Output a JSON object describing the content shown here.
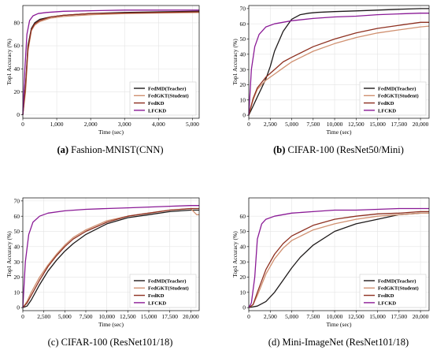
{
  "figure": {
    "colors": {
      "teacher": "#1e1a1a",
      "student": "#d09070",
      "fedkd": "#8e3020",
      "lfckd": "#8a1a96"
    }
  },
  "chart_data": [
    {
      "type": "line",
      "panel_label": "(a)",
      "caption": "Fashion-MNIST(CNN)",
      "xlabel": "Time (sec)",
      "ylabel": "Top1 Accuracy (%)",
      "xlim": [
        0,
        5200
      ],
      "ylim": [
        -3,
        95
      ],
      "xticks": [
        0,
        1000,
        2000,
        3000,
        4000,
        5000
      ],
      "xtick_labels": [
        "0",
        "1,000",
        "2,000",
        "3,000",
        "4,000",
        "5,000"
      ],
      "yticks": [
        0,
        20,
        40,
        60,
        80
      ],
      "ytick_labels": [
        "0",
        "20",
        "40",
        "60",
        "80"
      ],
      "grid": true,
      "legend_position": "bottom-right",
      "series": [
        {
          "name": "FedMD(Teacher)",
          "color_key": "teacher",
          "x": [
            0,
            80,
            150,
            250,
            350,
            500,
            800,
            1200,
            2000,
            3000,
            4000,
            5200
          ],
          "y": [
            0,
            25,
            60,
            75,
            80,
            83,
            85,
            86.5,
            88,
            89,
            89.5,
            90
          ]
        },
        {
          "name": "FedGKT(Student)",
          "color_key": "student",
          "x": [
            0,
            80,
            150,
            250,
            350,
            500,
            800,
            1200,
            2000,
            3000,
            4000,
            5200
          ],
          "y": [
            0,
            20,
            55,
            73,
            78,
            81,
            84,
            85.5,
            87,
            88,
            88.5,
            89
          ]
        },
        {
          "name": "FedKD",
          "color_key": "fedkd",
          "x": [
            0,
            80,
            150,
            250,
            350,
            500,
            800,
            1200,
            2000,
            3000,
            4000,
            5200
          ],
          "y": [
            0,
            24,
            58,
            74,
            79,
            82,
            85,
            86.5,
            88,
            88.5,
            89,
            89.5
          ]
        },
        {
          "name": "LFCKD",
          "color_key": "lfckd",
          "x": [
            0,
            60,
            120,
            200,
            300,
            450,
            700,
            1200,
            2000,
            3000,
            4000,
            5200
          ],
          "y": [
            0,
            40,
            70,
            82,
            86,
            88,
            89,
            90,
            90.5,
            91,
            91,
            91
          ]
        }
      ]
    },
    {
      "type": "line",
      "panel_label": "(b)",
      "caption": "CIFAR-100 (ResNet50/Mini)",
      "xlabel": "Time (sec)",
      "ylabel": "Top1 Accuracy (%)",
      "xlim": [
        0,
        21000
      ],
      "ylim": [
        -2,
        72
      ],
      "xticks": [
        0,
        2500,
        5000,
        7500,
        10000,
        12500,
        15000,
        17500,
        20000
      ],
      "xtick_labels": [
        "0",
        "2,500",
        "5,000",
        "7,500",
        "10,000",
        "12,500",
        "15,000",
        "17,500",
        "20,000"
      ],
      "yticks": [
        0,
        10,
        20,
        30,
        40,
        50,
        60,
        70
      ],
      "ytick_labels": [
        "0",
        "10",
        "20",
        "30",
        "40",
        "50",
        "60",
        "70"
      ],
      "grid": true,
      "legend_position": "bottom-right",
      "series": [
        {
          "name": "FedMD(Teacher)",
          "color_key": "teacher",
          "x": [
            0,
            500,
            1000,
            1500,
            2000,
            2500,
            3000,
            4000,
            5000,
            6000,
            7000,
            8000,
            10000,
            12500,
            15000,
            17500,
            20000,
            21000
          ],
          "y": [
            0,
            6,
            12,
            18,
            24,
            32,
            42,
            55,
            63,
            66,
            67,
            67.5,
            68,
            68.5,
            69,
            69.5,
            70,
            70
          ]
        },
        {
          "name": "FedGKT(Student)",
          "color_key": "student",
          "x": [
            0,
            500,
            1000,
            2000,
            3000,
            4000,
            5000,
            7500,
            10000,
            12500,
            15000,
            17500,
            20000,
            21000
          ],
          "y": [
            0,
            10,
            17,
            23,
            27,
            31,
            35,
            42,
            47,
            51,
            54,
            56,
            58,
            58.5
          ]
        },
        {
          "name": "FedKD",
          "color_key": "fedkd",
          "x": [
            0,
            500,
            1000,
            2000,
            3000,
            4000,
            5000,
            7500,
            10000,
            12500,
            15000,
            17500,
            20000,
            21000
          ],
          "y": [
            0,
            11,
            18,
            25,
            30,
            35,
            38,
            45,
            50,
            54,
            57,
            59,
            61,
            61
          ]
        },
        {
          "name": "LFCKD",
          "color_key": "lfckd",
          "x": [
            0,
            300,
            700,
            1200,
            2000,
            3000,
            5000,
            7500,
            10000,
            12500,
            15000,
            17500,
            20000,
            21000
          ],
          "y": [
            0,
            30,
            45,
            53,
            58,
            60,
            62,
            63.5,
            64.5,
            65,
            66,
            66.5,
            67,
            67
          ]
        }
      ]
    },
    {
      "type": "line",
      "panel_label": "(c)",
      "caption": "CIFAR-100 (ResNet101/18)",
      "xlabel": "Time (sec)",
      "ylabel": "Top1 Accuracy (%)",
      "xlim": [
        0,
        21000
      ],
      "ylim": [
        -2,
        72
      ],
      "xticks": [
        0,
        2500,
        5000,
        7500,
        10000,
        12500,
        15000,
        17500,
        20000
      ],
      "xtick_labels": [
        "0",
        "2,500",
        "5,000",
        "7,500",
        "10,000",
        "12,500",
        "15,000",
        "17,500",
        "20,000"
      ],
      "yticks": [
        0,
        10,
        20,
        30,
        40,
        50,
        60,
        70
      ],
      "ytick_labels": [
        "0",
        "10",
        "20",
        "30",
        "40",
        "50",
        "60",
        "70"
      ],
      "grid": true,
      "legend_position": "bottom-right",
      "series": [
        {
          "name": "FedMD(Teacher)",
          "color_key": "teacher",
          "x": [
            0,
            500,
            1000,
            2000,
            3000,
            4000,
            5000,
            6000,
            7500,
            10000,
            12500,
            15000,
            17500,
            20000,
            21000
          ],
          "y": [
            0,
            1,
            5,
            15,
            24,
            31,
            37,
            42,
            48,
            55,
            59,
            61,
            63,
            64,
            64
          ]
        },
        {
          "name": "FedGKT(Student)",
          "color_key": "student",
          "x": [
            0,
            500,
            1000,
            2000,
            3000,
            4000,
            5000,
            6000,
            7500,
            10000,
            12500,
            15000,
            17500,
            20000,
            20700,
            21000
          ],
          "y": [
            0,
            4,
            10,
            20,
            28,
            35,
            41,
            46,
            51,
            57,
            60,
            62,
            64,
            65,
            61,
            61
          ]
        },
        {
          "name": "FedKD",
          "color_key": "fedkd",
          "x": [
            0,
            500,
            1000,
            2000,
            3000,
            4000,
            5000,
            6000,
            7500,
            10000,
            12500,
            15000,
            17500,
            20000,
            21000
          ],
          "y": [
            0,
            3,
            8,
            18,
            27,
            34,
            40,
            45,
            50,
            56,
            60,
            62,
            64,
            65,
            65
          ]
        },
        {
          "name": "LFCKD",
          "color_key": "lfckd",
          "x": [
            0,
            300,
            700,
            1200,
            2000,
            3000,
            5000,
            7500,
            10000,
            12500,
            15000,
            17500,
            20000,
            21000
          ],
          "y": [
            0,
            30,
            48,
            56,
            60,
            62,
            63.5,
            64.5,
            65,
            65.5,
            66,
            66.5,
            67,
            67
          ]
        }
      ]
    },
    {
      "type": "line",
      "panel_label": "(d)",
      "caption": "Mini-ImageNet (ResNet101/18)",
      "xlabel": "Time (sec)",
      "ylabel": "Top1 Accuracy (%)",
      "xlim": [
        0,
        21000
      ],
      "ylim": [
        -2,
        72
      ],
      "xticks": [
        0,
        2500,
        5000,
        7500,
        10000,
        12500,
        15000,
        17500,
        20000
      ],
      "xtick_labels": [
        "0",
        "2,500",
        "5,000",
        "7,500",
        "10,000",
        "12,500",
        "15,000",
        "17,500",
        "20,000"
      ],
      "yticks": [
        0,
        10,
        20,
        30,
        40,
        50,
        60
      ],
      "ytick_labels": [
        "0",
        "10",
        "20",
        "30",
        "40",
        "50",
        "60"
      ],
      "grid": true,
      "legend_position": "bottom-right",
      "series": [
        {
          "name": "FedMD(Teacher)",
          "color_key": "teacher",
          "x": [
            0,
            1000,
            2000,
            3000,
            4000,
            5000,
            6000,
            7500,
            10000,
            12500,
            15000,
            17500,
            20000,
            21000
          ],
          "y": [
            0,
            1,
            4,
            10,
            18,
            26,
            33,
            41,
            50,
            55,
            58,
            61,
            62,
            62
          ]
        },
        {
          "name": "FedGKT(Student)",
          "color_key": "student",
          "x": [
            0,
            500,
            1000,
            2000,
            3000,
            4000,
            5000,
            7500,
            10000,
            12500,
            15000,
            17500,
            20000,
            21000
          ],
          "y": [
            0,
            2,
            8,
            22,
            32,
            39,
            44,
            51,
            55,
            58,
            60,
            61,
            62,
            62
          ]
        },
        {
          "name": "FedKD",
          "color_key": "fedkd",
          "x": [
            0,
            500,
            1000,
            2000,
            3000,
            4000,
            5000,
            7500,
            10000,
            12500,
            15000,
            17500,
            20000,
            21000
          ],
          "y": [
            0,
            2,
            10,
            25,
            35,
            42,
            47,
            54,
            58,
            60,
            61.5,
            62,
            63,
            63
          ]
        },
        {
          "name": "LFCKD",
          "color_key": "lfckd",
          "x": [
            0,
            300,
            700,
            1000,
            1500,
            2000,
            3000,
            5000,
            7500,
            10000,
            12500,
            15000,
            17500,
            20000,
            21000
          ],
          "y": [
            0,
            3,
            20,
            45,
            55,
            58,
            60,
            62,
            63,
            64,
            64,
            64.5,
            65,
            65,
            65
          ]
        }
      ]
    }
  ]
}
